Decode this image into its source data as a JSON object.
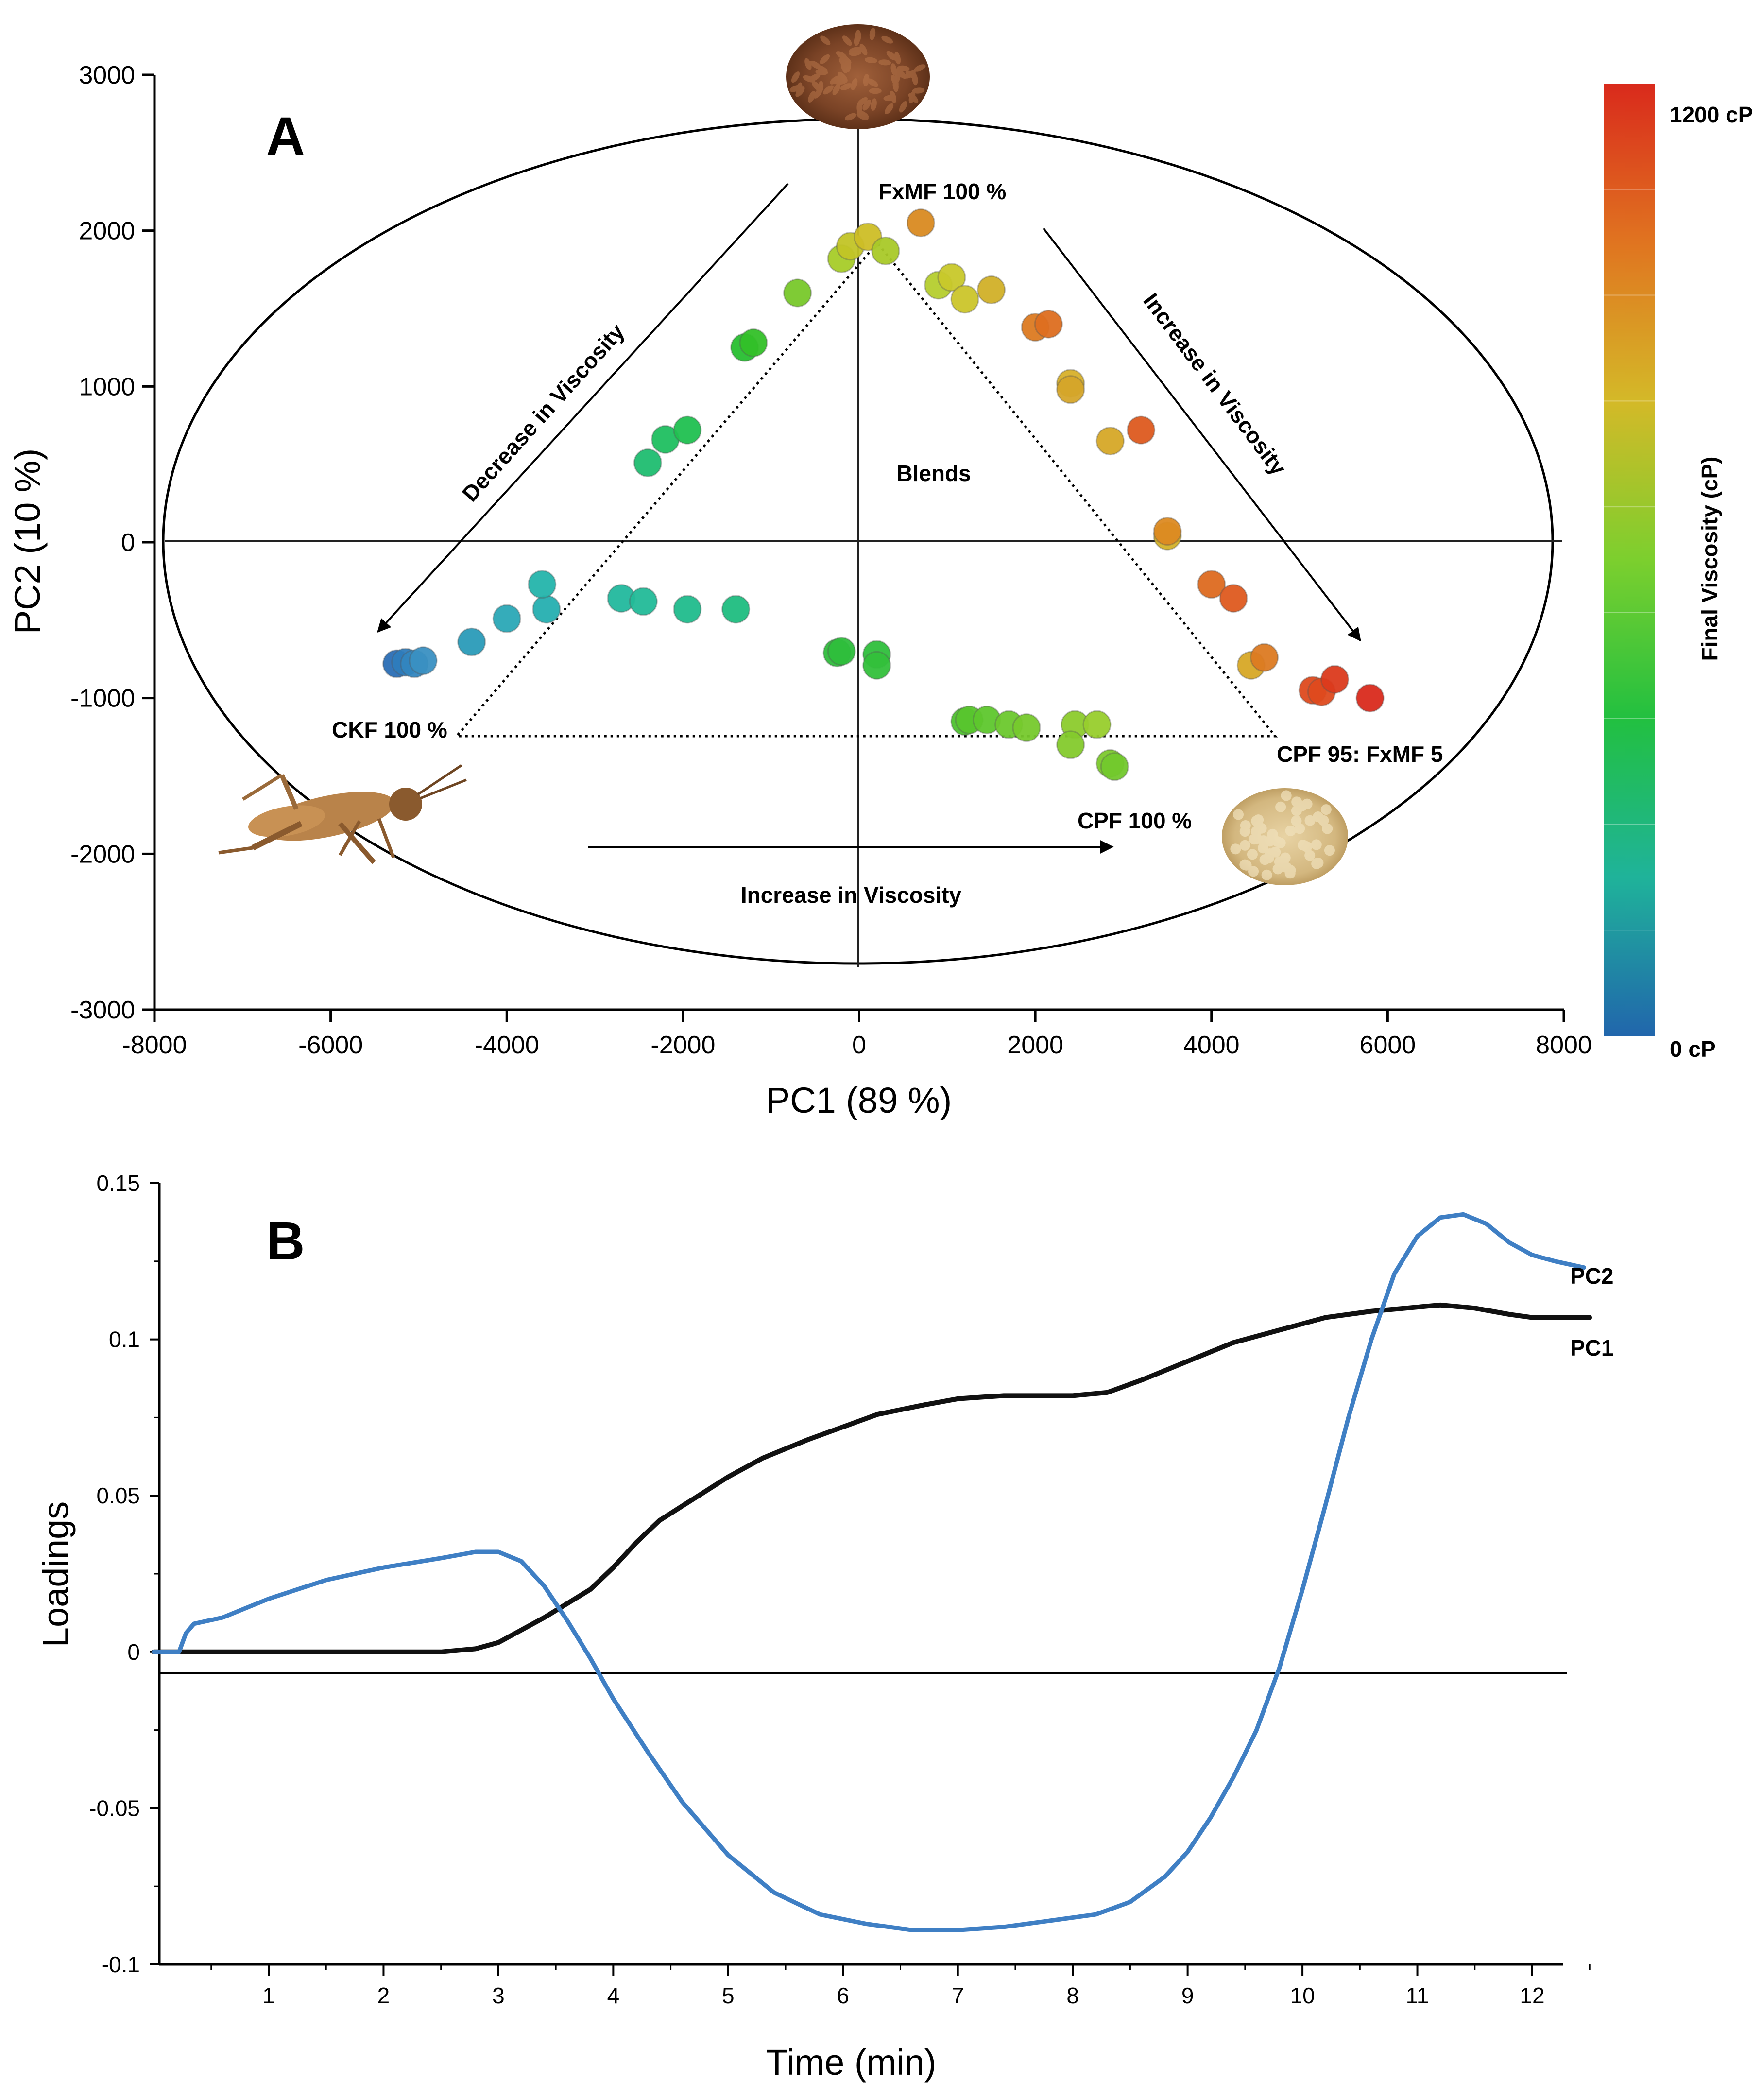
{
  "chart_data": [
    {
      "type": "scatter",
      "panel_label": "A",
      "xlabel": "PC1 (89 %)",
      "ylabel": "PC2 (10 %)",
      "xlim": [
        -8000,
        8000
      ],
      "ylim": [
        -3000,
        3000
      ],
      "xticks": [
        "-8000",
        "-6000",
        "-4000",
        "-2000",
        "0",
        "2000",
        "4000",
        "6000",
        "8000"
      ],
      "yticks": [
        "3000",
        "2000",
        "1000",
        "0",
        "-1000",
        "-2000",
        "-3000"
      ],
      "grid": false,
      "colorbar": {
        "title": "Final Viscosity (cP)",
        "max_label": "1200 cP",
        "min_label": "0 cP",
        "colors": [
          "#2166ac",
          "#1fb39a",
          "#22c040",
          "#7ccf2e",
          "#d4b928",
          "#e07420",
          "#d92a1c"
        ]
      },
      "annotations": {
        "flax": "FxMF 100 %",
        "cricket": "CKF 100 %",
        "pea": "CPF 100 %",
        "blend_corner": "CPF 95: FxMF 5",
        "blends": "Blends",
        "arrow_left": "Decrease in Viscosity",
        "arrow_right": "Increase in Viscosity",
        "arrow_bottom": "Increase in Viscosity"
      },
      "points": [
        {
          "x": -5250,
          "y": -780,
          "color": "#2a6eb5"
        },
        {
          "x": -5150,
          "y": -770,
          "color": "#2e7cbc"
        },
        {
          "x": -5050,
          "y": -780,
          "color": "#3386bf"
        },
        {
          "x": -4950,
          "y": -760,
          "color": "#3a90c2"
        },
        {
          "x": -4400,
          "y": -640,
          "color": "#2a9bb8"
        },
        {
          "x": -4000,
          "y": -490,
          "color": "#2aa8b6"
        },
        {
          "x": -3550,
          "y": -430,
          "color": "#25afb0"
        },
        {
          "x": -3600,
          "y": -270,
          "color": "#24b4ab"
        },
        {
          "x": -2700,
          "y": -360,
          "color": "#22b89d"
        },
        {
          "x": -2450,
          "y": -380,
          "color": "#22bb98"
        },
        {
          "x": -1950,
          "y": -430,
          "color": "#20bc8c"
        },
        {
          "x": -1400,
          "y": -430,
          "color": "#1fbd80"
        },
        {
          "x": -2400,
          "y": 510,
          "color": "#1fbd70"
        },
        {
          "x": -2200,
          "y": 660,
          "color": "#1fbf60"
        },
        {
          "x": -1950,
          "y": 720,
          "color": "#20c050"
        },
        {
          "x": -1300,
          "y": 1250,
          "color": "#27bf30"
        },
        {
          "x": -1200,
          "y": 1280,
          "color": "#33c028"
        },
        {
          "x": -700,
          "y": 1600,
          "color": "#78c82a"
        },
        {
          "x": -200,
          "y": 1820,
          "color": "#a7cc28"
        },
        {
          "x": -100,
          "y": 1900,
          "color": "#c2c426"
        },
        {
          "x": 100,
          "y": 1960,
          "color": "#cdbe26"
        },
        {
          "x": 300,
          "y": 1870,
          "color": "#a9c928"
        },
        {
          "x": 700,
          "y": 2050,
          "color": "#d98a21"
        },
        {
          "x": 900,
          "y": 1650,
          "color": "#b5cd2e"
        },
        {
          "x": 1050,
          "y": 1700,
          "color": "#c8c82a"
        },
        {
          "x": 1200,
          "y": 1560,
          "color": "#cbc52a"
        },
        {
          "x": 1500,
          "y": 1620,
          "color": "#d1b028"
        },
        {
          "x": 2000,
          "y": 1380,
          "color": "#dc7a21"
        },
        {
          "x": 2150,
          "y": 1400,
          "color": "#dd6e20"
        },
        {
          "x": 2400,
          "y": 1020,
          "color": "#d7b02a"
        },
        {
          "x": 2400,
          "y": 980,
          "color": "#d5a52a"
        },
        {
          "x": 2850,
          "y": 650,
          "color": "#d6a827"
        },
        {
          "x": 3200,
          "y": 720,
          "color": "#dd5a1f"
        },
        {
          "x": 3500,
          "y": 40,
          "color": "#d4b228"
        },
        {
          "x": 3500,
          "y": 70,
          "color": "#dc8a22"
        },
        {
          "x": 4000,
          "y": -270,
          "color": "#dd6a20"
        },
        {
          "x": 4250,
          "y": -360,
          "color": "#de5a1f"
        },
        {
          "x": 4450,
          "y": -790,
          "color": "#d7a826"
        },
        {
          "x": 4600,
          "y": -740,
          "color": "#dc7a22"
        },
        {
          "x": 5150,
          "y": -950,
          "color": "#de4a1e"
        },
        {
          "x": 5250,
          "y": -960,
          "color": "#de4a1e"
        },
        {
          "x": 5400,
          "y": -880,
          "color": "#db3a1c"
        },
        {
          "x": 5800,
          "y": -1000,
          "color": "#d92a1c"
        },
        {
          "x": -250,
          "y": -710,
          "color": "#2fbd3c"
        },
        {
          "x": -200,
          "y": -700,
          "color": "#2ebe3c"
        },
        {
          "x": 200,
          "y": -720,
          "color": "#2fbf3c"
        },
        {
          "x": 200,
          "y": -790,
          "color": "#33c03b"
        },
        {
          "x": 1200,
          "y": -1150,
          "color": "#4ec22e"
        },
        {
          "x": 1250,
          "y": -1140,
          "color": "#58c52d"
        },
        {
          "x": 1450,
          "y": -1140,
          "color": "#5ec72d"
        },
        {
          "x": 1700,
          "y": -1170,
          "color": "#6cc82d"
        },
        {
          "x": 1900,
          "y": -1190,
          "color": "#76c92c"
        },
        {
          "x": 2450,
          "y": -1170,
          "color": "#8ccb2c"
        },
        {
          "x": 2700,
          "y": -1170,
          "color": "#98cd2c"
        },
        {
          "x": 2400,
          "y": -1300,
          "color": "#84ca2c"
        },
        {
          "x": 2850,
          "y": -1420,
          "color": "#7cc92c"
        },
        {
          "x": 2900,
          "y": -1440,
          "color": "#72c82c"
        }
      ]
    },
    {
      "type": "line",
      "panel_label": "B",
      "xlabel": "Time (min)",
      "ylabel": "Loadings",
      "xlim": [
        0,
        12.5
      ],
      "ylim": [
        -0.1,
        0.15
      ],
      "xticks": [
        "1",
        "2",
        "3",
        "4",
        "5",
        "6",
        "7",
        "8",
        "9",
        "10",
        "11",
        "12"
      ],
      "yticks": [
        "0.15",
        "0.1",
        "0.05",
        "0",
        "-0.05",
        "-0.1"
      ],
      "grid": false,
      "series": [
        {
          "name": "PC1",
          "color": "#111111",
          "x": [
            0.0,
            0.2,
            2.5,
            2.8,
            3.0,
            3.4,
            3.8,
            4.0,
            4.2,
            4.4,
            4.7,
            5.0,
            5.3,
            5.7,
            6.0,
            6.3,
            6.7,
            7.0,
            7.4,
            8.0,
            8.3,
            8.6,
            9.0,
            9.4,
            9.8,
            10.2,
            10.6,
            10.9,
            11.2,
            11.5,
            11.8,
            12.0,
            12.5
          ],
          "values": [
            0,
            0,
            0,
            0.001,
            0.003,
            0.011,
            0.02,
            0.027,
            0.035,
            0.042,
            0.049,
            0.056,
            0.062,
            0.068,
            0.072,
            0.076,
            0.079,
            0.081,
            0.082,
            0.082,
            0.083,
            0.087,
            0.093,
            0.099,
            0.103,
            0.107,
            0.109,
            0.11,
            0.111,
            0.11,
            0.108,
            0.107,
            0.107
          ]
        },
        {
          "name": "PC2",
          "color": "#3f7fc4",
          "x": [
            0.0,
            0.22,
            0.28,
            0.35,
            0.6,
            1.0,
            1.5,
            2.0,
            2.5,
            2.8,
            3.0,
            3.2,
            3.4,
            3.6,
            3.8,
            4.0,
            4.3,
            4.6,
            5.0,
            5.4,
            5.8,
            6.2,
            6.6,
            7.0,
            7.4,
            7.8,
            8.2,
            8.5,
            8.8,
            9.0,
            9.2,
            9.4,
            9.6,
            9.8,
            10.0,
            10.2,
            10.4,
            10.6,
            10.8,
            11.0,
            11.2,
            11.4,
            11.6,
            11.8,
            12.0,
            12.2,
            12.45
          ],
          "values": [
            0,
            0,
            0.006,
            0.009,
            0.011,
            0.017,
            0.023,
            0.027,
            0.03,
            0.032,
            0.032,
            0.029,
            0.021,
            0.01,
            -0.002,
            -0.015,
            -0.032,
            -0.048,
            -0.065,
            -0.077,
            -0.084,
            -0.087,
            -0.089,
            -0.089,
            -0.088,
            -0.086,
            -0.084,
            -0.08,
            -0.072,
            -0.064,
            -0.053,
            -0.04,
            -0.025,
            -0.005,
            0.02,
            0.047,
            0.075,
            0.1,
            0.121,
            0.133,
            0.139,
            0.14,
            0.137,
            0.131,
            0.127,
            0.125,
            0.123
          ]
        }
      ]
    }
  ]
}
